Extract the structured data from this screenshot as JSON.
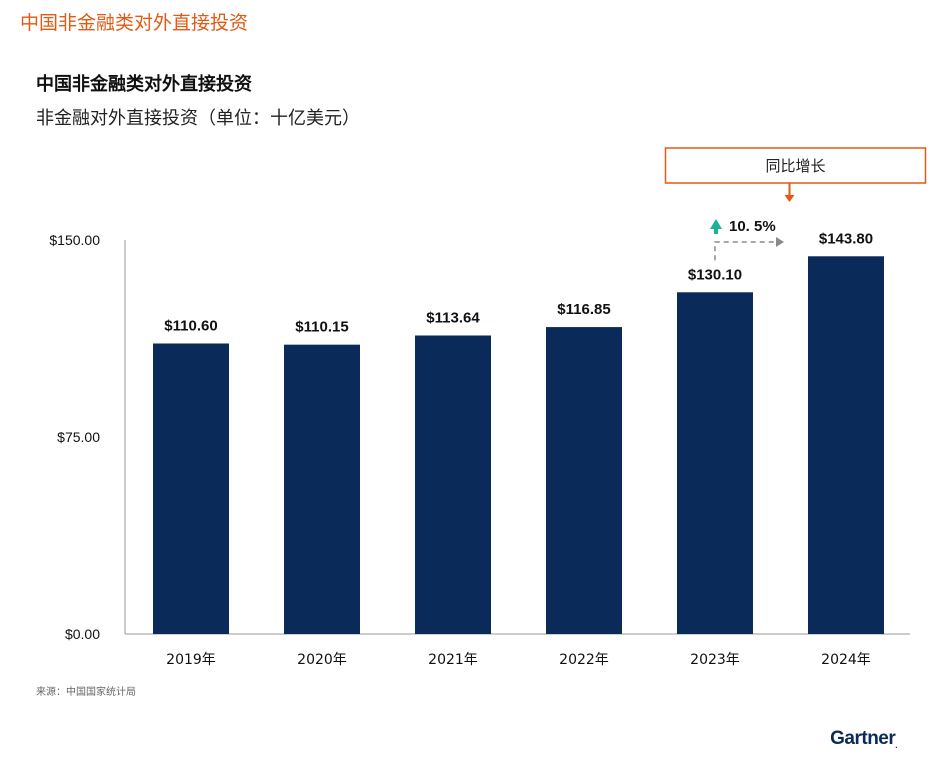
{
  "header": {
    "title": "中国非金融类对外直接投资"
  },
  "chart_data": {
    "type": "bar",
    "title": "中国非金融类对外直接投资",
    "subtitle": "非金融对外直接投资（单位：十亿美元）",
    "categories": [
      "2019年",
      "2020年",
      "2021年",
      "2022年",
      "2023年",
      "2024年"
    ],
    "values": [
      110.6,
      110.15,
      113.64,
      116.85,
      130.1,
      143.8
    ],
    "value_labels": [
      "$110.60",
      "$110.15",
      "$113.64",
      "$116.85",
      "$130.10",
      "$143.80"
    ],
    "ylim": [
      0,
      150
    ],
    "yticks": [
      {
        "value": 0,
        "label": "$0.00"
      },
      {
        "value": 75,
        "label": "$75.00"
      },
      {
        "value": 150,
        "label": "$150.00"
      }
    ],
    "xlabel": "",
    "ylabel": "",
    "grid": false,
    "bar_color": "#0a2b59",
    "annotation": {
      "label": "同比增长",
      "value": "10. 5%",
      "from_category": "2023年",
      "to_category": "2024年",
      "box_color": "#e25a13",
      "icon": "up-arrow-icon",
      "icon_color": "#1ab394"
    }
  },
  "footer": {
    "source": "来源：中国国家统计局",
    "logo": "Gartner",
    "logo_dot": "."
  }
}
